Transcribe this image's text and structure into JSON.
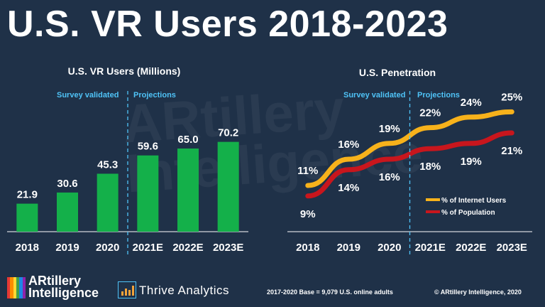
{
  "page": {
    "title": "U.S. VR Users 2018-2023",
    "watermark": "ARtillery Intelligence",
    "base_note": "2017-2020 Base = 9,079 U.S. online adults",
    "copyright": "© ARtillery Intelligence, 2020",
    "logo_artillery_line1": "ARtillery",
    "logo_artillery_line2": "Intelligence",
    "logo_thrive": "Thrive Analytics"
  },
  "colors": {
    "background": "#1f3148",
    "bar": "#14b04a",
    "annotation": "#4fc3f7",
    "internet_line": "#f7b21b",
    "population_line": "#c8161d"
  },
  "chart_data": [
    {
      "type": "bar",
      "title": "U.S. VR Users (Millions)",
      "categories": [
        "2018",
        "2019",
        "2020",
        "2021E",
        "2022E",
        "2023E"
      ],
      "values": [
        21.9,
        30.6,
        45.3,
        59.6,
        65.0,
        70.2
      ],
      "value_labels": [
        "21.9",
        "30.6",
        "45.3",
        "59.6",
        "65.0",
        "70.2"
      ],
      "ylim": [
        0,
        80
      ],
      "annotations": [
        "Survey validated",
        "Projections"
      ],
      "grid": false
    },
    {
      "type": "line",
      "title": "U.S. Penetration",
      "categories": [
        "2018",
        "2019",
        "2020",
        "2021E",
        "2022E",
        "2023E"
      ],
      "series": [
        {
          "name": "% of Internet Users",
          "values": [
            11,
            16,
            19,
            22,
            24,
            25
          ],
          "labels": [
            "11%",
            "16%",
            "19%",
            "22%",
            "24%",
            "25%"
          ]
        },
        {
          "name": "% of Population",
          "values": [
            9,
            14,
            16,
            18,
            19,
            21
          ],
          "labels": [
            "9%",
            "14%",
            "16%",
            "18%",
            "19%",
            "21%"
          ]
        }
      ],
      "ylim": [
        0,
        30
      ],
      "annotations": [
        "Survey validated",
        "Projections"
      ],
      "legend": "bottom-right",
      "grid": false
    }
  ]
}
